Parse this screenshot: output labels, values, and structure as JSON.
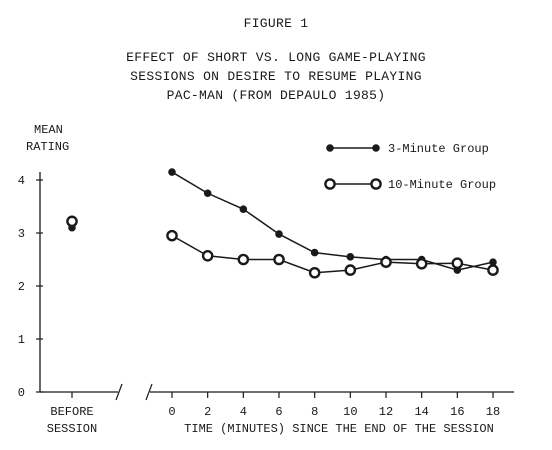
{
  "figure_label": "FIGURE 1",
  "title_lines": [
    "EFFECT OF SHORT VS. LONG GAME-PLAYING",
    "SESSIONS ON DESIRE TO RESUME PLAYING",
    "PAC-MAN (FROM DEPAULO 1985)"
  ],
  "ylabel_lines": [
    "MEAN",
    "RATING"
  ],
  "chart_data": {
    "type": "line",
    "title": "EFFECT OF SHORT VS. LONG GAME-PLAYING SESSIONS ON DESIRE TO RESUME PLAYING PAC-MAN (FROM DEPAULO 1985)",
    "ylabel": "MEAN RATING",
    "xlabel": "TIME (MINUTES) SINCE THE END OF THE SESSION",
    "ylim": [
      0,
      4
    ],
    "yticks": [
      0,
      1,
      2,
      3,
      4
    ],
    "x": [
      0,
      2,
      4,
      6,
      8,
      10,
      12,
      14,
      16,
      18
    ],
    "xlim": [
      -1,
      20
    ],
    "before_label": [
      "BEFORE",
      "SESSION"
    ],
    "grid": false,
    "legend_position": "top-right",
    "series": [
      {
        "name": "3-Minute Group",
        "marker": "filled-circle",
        "before": 3.1,
        "values": [
          4.15,
          3.75,
          3.45,
          2.98,
          2.63,
          2.55,
          2.5,
          2.5,
          2.3,
          2.45
        ]
      },
      {
        "name": "10-Minute Group",
        "marker": "open-circle",
        "before": 3.22,
        "values": [
          2.95,
          2.57,
          2.5,
          2.5,
          2.25,
          2.3,
          2.45,
          2.42,
          2.43,
          2.3
        ]
      }
    ]
  },
  "colors": {
    "ink": "#1a1a1a",
    "background": "#ffffff"
  }
}
